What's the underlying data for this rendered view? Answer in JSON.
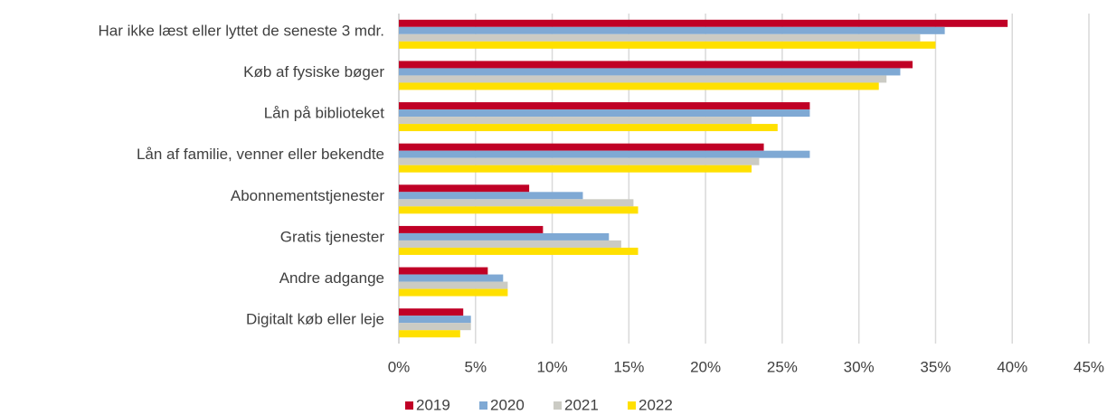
{
  "chart_data": {
    "type": "barh",
    "categories": [
      "Har ikke læst eller lyttet de seneste 3 mdr.",
      "Køb af fysiske bøger",
      "Lån på biblioteket",
      "Lån af familie, venner eller bekendte",
      "Abonnementstjenester",
      "Gratis tjenester",
      "Andre adgange",
      "Digitalt køb eller leje"
    ],
    "series": [
      {
        "name": "2019",
        "color": "#c00026",
        "values": [
          39.7,
          33.5,
          26.8,
          23.8,
          8.5,
          9.4,
          5.8,
          4.2
        ]
      },
      {
        "name": "2020",
        "color": "#7fa9d4",
        "values": [
          35.6,
          32.7,
          26.8,
          26.8,
          12.0,
          13.7,
          6.8,
          4.7
        ]
      },
      {
        "name": "2021",
        "color": "#cbcbc4",
        "values": [
          34.0,
          31.8,
          23.0,
          23.5,
          15.3,
          14.5,
          7.1,
          4.7
        ]
      },
      {
        "name": "2022",
        "color": "#ffe000",
        "values": [
          35.0,
          31.3,
          24.7,
          23.0,
          15.6,
          15.6,
          7.1,
          4.0
        ]
      }
    ],
    "xlim": [
      0,
      45
    ],
    "xticks": [
      {
        "value": 0,
        "label": "0%"
      },
      {
        "value": 5,
        "label": "5%"
      },
      {
        "value": 10,
        "label": "10%"
      },
      {
        "value": 15,
        "label": "15%"
      },
      {
        "value": 20,
        "label": "20%"
      },
      {
        "value": 25,
        "label": "25%"
      },
      {
        "value": 30,
        "label": "30%"
      },
      {
        "value": 35,
        "label": "35%"
      },
      {
        "value": 40,
        "label": "40%"
      },
      {
        "value": 45,
        "label": "45%"
      }
    ],
    "grid": true,
    "legend": "bottom"
  }
}
